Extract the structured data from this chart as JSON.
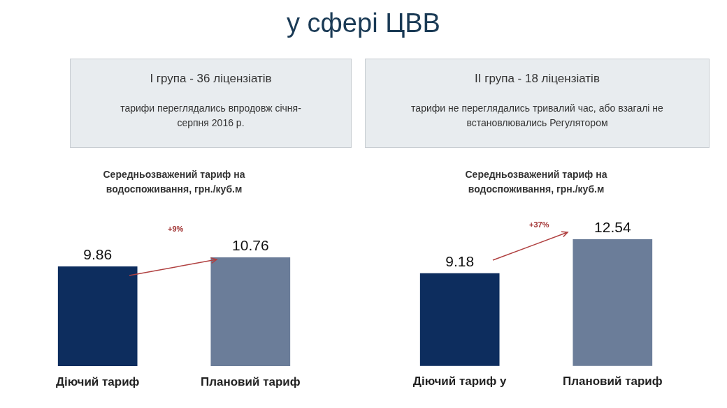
{
  "chart_data": [
    {
      "type": "other",
      "title": "у сфері ЦВВ"
    },
    {
      "type": "bar",
      "title": "Середньозважений тариф  на водоспоживання, грн./куб.м",
      "categories": [
        "Діючий тариф",
        "Плановий тариф"
      ],
      "values": [
        9.86,
        10.76
      ],
      "colors": [
        "#0d2d5e",
        "#6b7d99"
      ],
      "data_labels": true,
      "annotations": [
        "I група  -  36 ліцензіатів",
        "тарифи переглядались впродовж січня-серпня 2016 р.",
        "+9%"
      ]
    },
    {
      "type": "bar",
      "title": "Середньозважений тариф  на водоспоживання, грн./куб.м",
      "categories": [
        "Діючий тариф у",
        "Плановий тариф"
      ],
      "values": [
        9.18,
        12.54
      ],
      "colors": [
        "#0d2d5e",
        "#6b7d99"
      ],
      "data_labels": true,
      "annotations": [
        "II група  -  18 ліцензіатів",
        "тарифи не переглядались тривалий час, або взагалі не встановлювались Регулятором",
        "+37%"
      ]
    }
  ]
}
